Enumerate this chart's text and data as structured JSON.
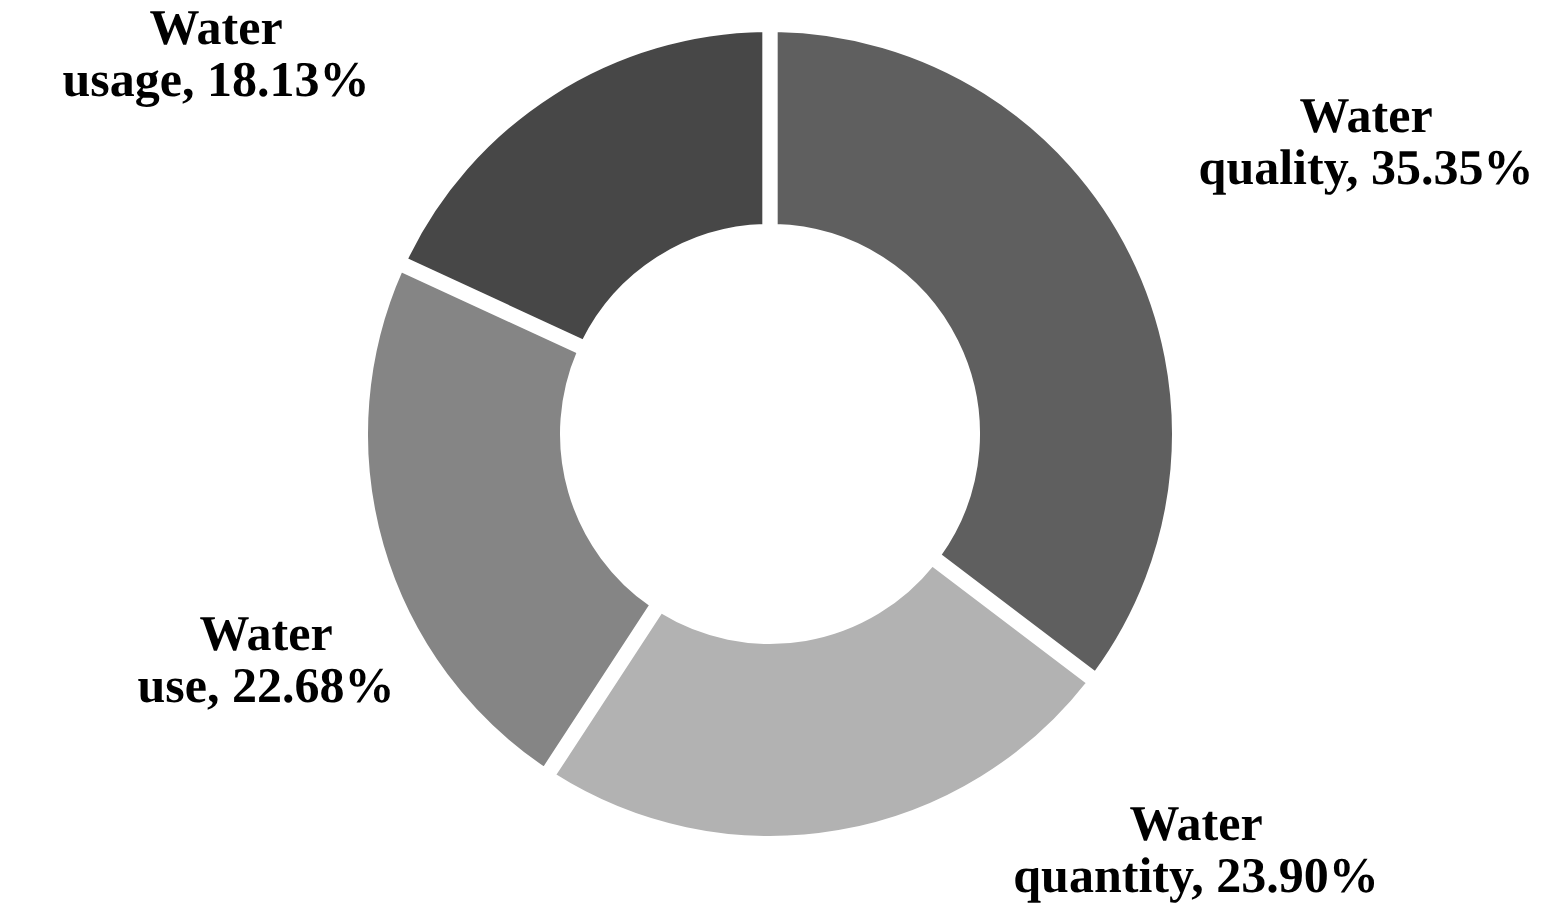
{
  "chart_data": {
    "type": "donut",
    "categories": [
      "Water quality",
      "Water quantity",
      "Water use",
      "Water usage"
    ],
    "values": [
      35.35,
      23.9,
      22.68,
      18.13
    ],
    "colors": [
      "#5f5f5f",
      "#b2b2b2",
      "#858585",
      "#474747"
    ],
    "value_labels": [
      "35.35%",
      "23.90%",
      "22.68%",
      "18.13%"
    ]
  }
}
